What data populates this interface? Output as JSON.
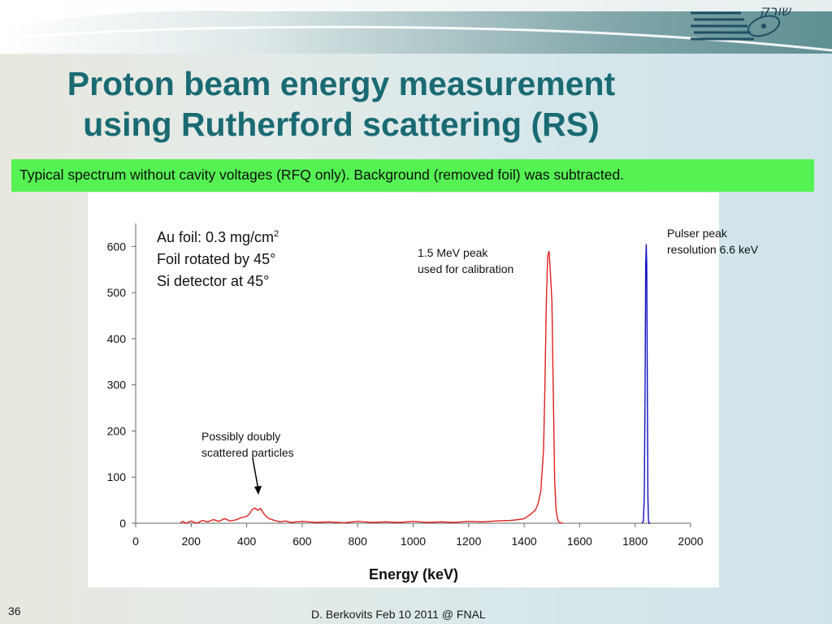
{
  "slide": {
    "title_line1": "Proton beam energy measurement",
    "title_line2": "using Rutherford scattering (RS)",
    "banner": "Typical spectrum without cavity voltages (RFQ only). Background (removed foil) was subtracted.",
    "logo_text": "שורק",
    "slide_number": "36",
    "footer": "D. Berkovits Feb 10 2011 @ FNAL"
  },
  "colors": {
    "title": "#1a6a73",
    "banner": "#55f253",
    "series_red": "#e02020",
    "series_blue": "#1010c0"
  },
  "chart_data": {
    "type": "line",
    "xlabel": "Energy (keV)",
    "ylabel": "",
    "xlim": [
      0,
      2000
    ],
    "ylim": [
      0,
      650
    ],
    "x_ticks": [
      0,
      200,
      400,
      600,
      800,
      1000,
      1200,
      1400,
      1600,
      1800,
      2000
    ],
    "y_ticks": [
      0,
      100,
      200,
      300,
      400,
      500,
      600
    ],
    "grid": false,
    "series": [
      {
        "color": "#e02020",
        "x": [
          160,
          170,
          180,
          200,
          220,
          240,
          260,
          280,
          300,
          320,
          340,
          360,
          380,
          400,
          410,
          420,
          430,
          440,
          450,
          460,
          470,
          480,
          500,
          520,
          540,
          560,
          600,
          650,
          700,
          750,
          800,
          850,
          900,
          950,
          1000,
          1050,
          1100,
          1150,
          1200,
          1250,
          1300,
          1350,
          1380,
          1400,
          1420,
          1440,
          1450,
          1460,
          1470,
          1475,
          1480,
          1485,
          1490,
          1495,
          1500,
          1505,
          1510,
          1515,
          1520,
          1525,
          1530,
          1540
        ],
        "y": [
          0,
          4,
          0,
          5,
          0,
          6,
          3,
          8,
          4,
          10,
          5,
          7,
          12,
          15,
          20,
          30,
          33,
          28,
          32,
          22,
          15,
          10,
          6,
          3,
          5,
          2,
          4,
          2,
          3,
          1,
          4,
          2,
          3,
          2,
          4,
          2,
          3,
          2,
          4,
          3,
          5,
          6,
          8,
          10,
          18,
          28,
          42,
          70,
          160,
          300,
          480,
          580,
          590,
          540,
          480,
          280,
          90,
          30,
          10,
          3,
          1,
          0
        ]
      },
      {
        "color": "#1010c0",
        "x": [
          1825,
          1830,
          1833,
          1836,
          1838,
          1840,
          1842,
          1844,
          1846,
          1848,
          1850,
          1855
        ],
        "y": [
          0,
          5,
          60,
          300,
          560,
          605,
          560,
          300,
          60,
          5,
          0,
          0
        ]
      }
    ],
    "annotations": {
      "foil_line1": "Au foil: 0.3 mg/cm",
      "foil_sup": "2",
      "foil_line2": "Foil rotated by 45°",
      "foil_line3": "Si detector at 45°",
      "calib_line1": "1.5 MeV peak",
      "calib_line2": "used for calibration",
      "pulser_line1": "Pulser peak",
      "pulser_line2": "resolution 6.6 keV",
      "double_line1": "Possibly doubly",
      "double_line2": "scattered particles"
    }
  }
}
